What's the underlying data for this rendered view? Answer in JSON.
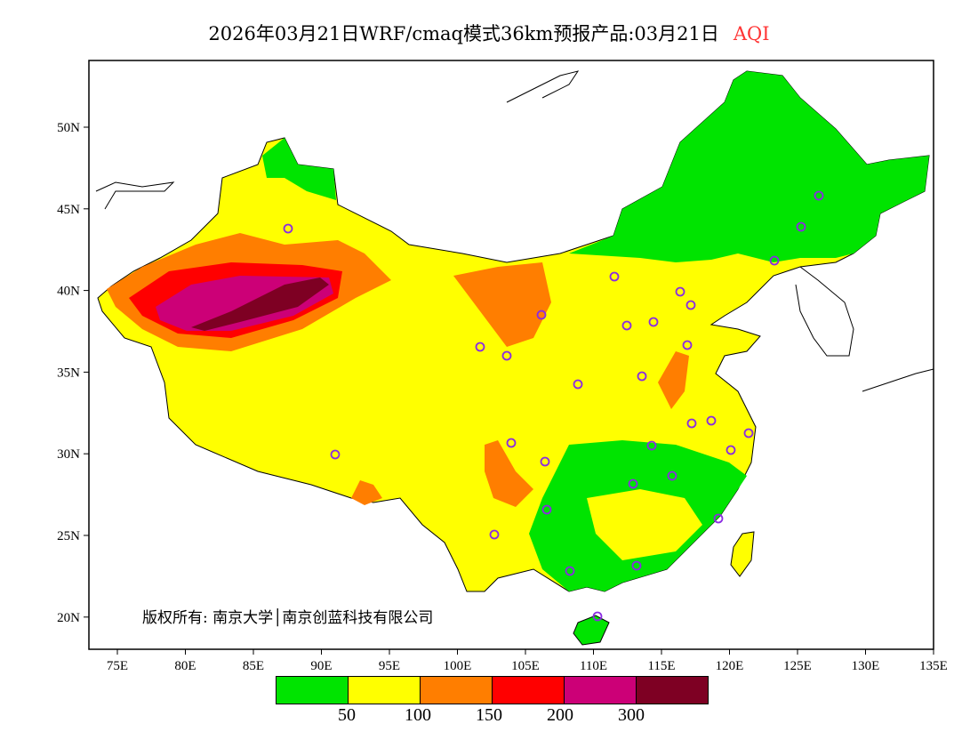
{
  "title": {
    "main": "2026年03月21日WRF/cmaq模式36km预报产品:03月21日",
    "variable": "AQI"
  },
  "axes": {
    "lon_ticks": [
      "75E",
      "80E",
      "85E",
      "90E",
      "95E",
      "100E",
      "105E",
      "110E",
      "115E",
      "120E",
      "125E",
      "130E",
      "135E"
    ],
    "lat_ticks": [
      "50N",
      "45N",
      "40N",
      "35N",
      "30N",
      "25N",
      "20N"
    ]
  },
  "copyright": "版权所有: 南京大学│南京创蓝科技有限公司",
  "legend": {
    "colors": [
      "#00e400",
      "#ffff00",
      "#ff7e00",
      "#ff0000",
      "#cc0077",
      "#7e0023"
    ],
    "labels": [
      "50",
      "100",
      "150",
      "200",
      "300"
    ]
  }
}
